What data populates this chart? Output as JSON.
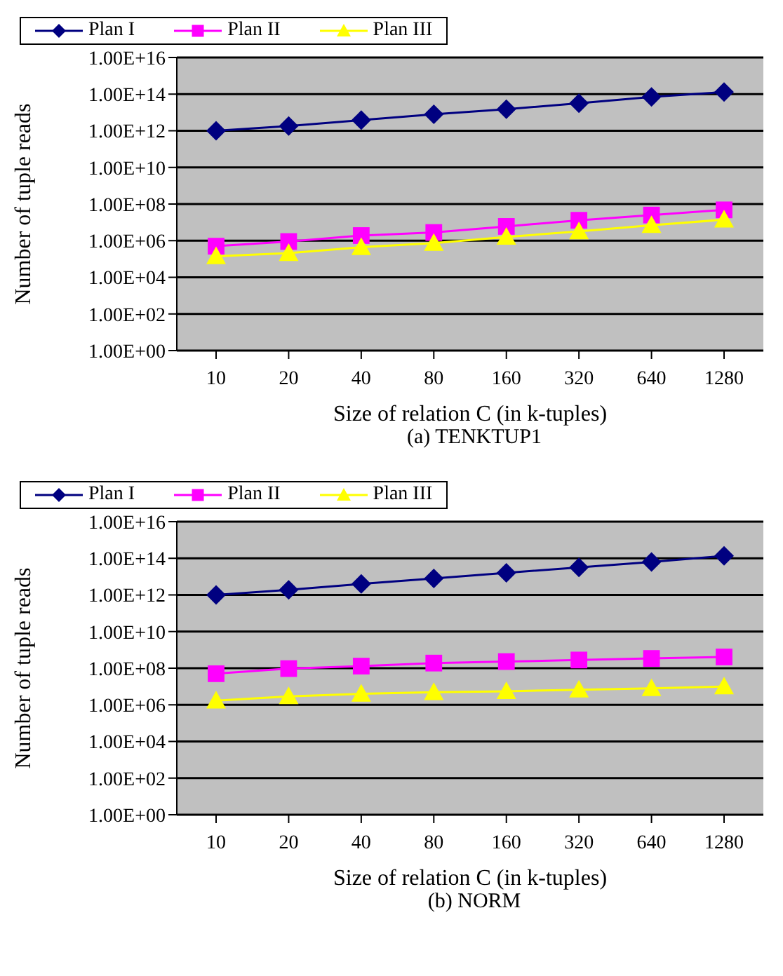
{
  "chart_data": [
    {
      "type": "line",
      "title": "(a) TENKTUP1",
      "xlabel": "Size of relation C (in k-tuples)",
      "ylabel": "Number of tuple reads",
      "categories": [
        "10",
        "20",
        "40",
        "80",
        "160",
        "320",
        "640",
        "1280"
      ],
      "series": [
        {
          "name": "Plan I",
          "color": "#000080",
          "marker": "diamond",
          "values": [
            1000000000000.0,
            1800000000000.0,
            3800000000000.0,
            8000000000000.0,
            15000000000000.0,
            32000000000000.0,
            70000000000000.0,
            130000000000000.0
          ]
        },
        {
          "name": "Plan II",
          "color": "#ff00ff",
          "marker": "square",
          "values": [
            500000.0,
            900000.0,
            1900000.0,
            2800000.0,
            6000000.0,
            13000000.0,
            25000000.0,
            48000000.0
          ]
        },
        {
          "name": "Plan III",
          "color": "#ffff00",
          "marker": "triangle",
          "values": [
            140000.0,
            210000.0,
            440000.0,
            740000.0,
            1600000.0,
            3200000.0,
            7000000.0,
            14000000.0
          ]
        }
      ],
      "log": "y",
      "ylim": [
        1,
        1e+16
      ],
      "yticks": [
        {
          "value": 1,
          "label": "1.00E+00"
        },
        {
          "value": 100,
          "label": "1.00E+02"
        },
        {
          "value": 10000,
          "label": "1.00E+04"
        },
        {
          "value": 1000000.0,
          "label": "1.00E+06"
        },
        {
          "value": 100000000.0,
          "label": "1.00E+08"
        },
        {
          "value": 10000000000.0,
          "label": "1.00E+10"
        },
        {
          "value": 1000000000000.0,
          "label": "1.00E+12"
        },
        {
          "value": 100000000000000.0,
          "label": "1.00E+14"
        },
        {
          "value": 1e+16,
          "label": "1.00E+16"
        }
      ],
      "grid": "y",
      "legend": "top"
    },
    {
      "type": "line",
      "title": "(b) NORM",
      "xlabel": "Size of relation C (in k-tuples)",
      "ylabel": "Number of tuple reads",
      "categories": [
        "10",
        "20",
        "40",
        "80",
        "160",
        "320",
        "640",
        "1280"
      ],
      "series": [
        {
          "name": "Plan I",
          "color": "#000080",
          "marker": "diamond",
          "values": [
            1000000000000.0,
            1900000000000.0,
            4000000000000.0,
            8000000000000.0,
            16000000000000.0,
            32000000000000.0,
            63000000000000.0,
            135000000000000.0
          ]
        },
        {
          "name": "Plan II",
          "color": "#ff00ff",
          "marker": "square",
          "values": [
            50000000.0,
            95000000.0,
            130000000.0,
            190000000.0,
            230000000.0,
            280000000.0,
            340000000.0,
            410000000.0
          ]
        },
        {
          "name": "Plan III",
          "color": "#ffff00",
          "marker": "triangle",
          "values": [
            1700000.0,
            2900000.0,
            4000000.0,
            4900000.0,
            5500000.0,
            6700000.0,
            8000000.0,
            10000000.0
          ]
        }
      ],
      "log": "y",
      "ylim": [
        1,
        1e+16
      ],
      "yticks": [
        {
          "value": 1,
          "label": "1.00E+00"
        },
        {
          "value": 100,
          "label": "1.00E+02"
        },
        {
          "value": 10000,
          "label": "1.00E+04"
        },
        {
          "value": 1000000.0,
          "label": "1.00E+06"
        },
        {
          "value": 100000000.0,
          "label": "1.00E+08"
        },
        {
          "value": 10000000000.0,
          "label": "1.00E+10"
        },
        {
          "value": 1000000000000.0,
          "label": "1.00E+12"
        },
        {
          "value": 100000000000000.0,
          "label": "1.00E+14"
        },
        {
          "value": 1e+16,
          "label": "1.00E+16"
        }
      ],
      "grid": "y",
      "legend": "top"
    }
  ]
}
